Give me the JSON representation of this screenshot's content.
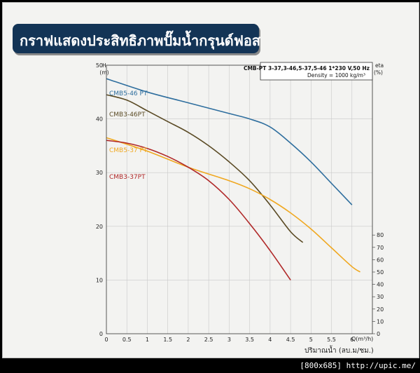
{
  "banner": {
    "title": "กราฟแสดงประสิทธิภาพปั๊มน้ำกรุนด์ฟอส"
  },
  "chart_data": {
    "type": "line",
    "info_line1": "CMB-PT 3-37,3-46,5-37,5-46  1*230 V,50 Hz",
    "info_line2": "Density = 1000 kg/m³",
    "ylabel": "H",
    "ylabel_unit": "(m)",
    "y2label": "eta",
    "y2label_unit": "(%)",
    "xlabel": "ปริมาณน้ำ (ลบ.ม/ชม.)",
    "xlabel_end": "Q(m³/h)",
    "xlim": [
      0,
      6.5
    ],
    "ylim": [
      0,
      50
    ],
    "x_ticks": [
      "0",
      "0.5",
      "1",
      "1.5",
      "2",
      "2.5",
      "3",
      "3.5",
      "4",
      "4.5",
      "5",
      "5.5",
      "6"
    ],
    "y_ticks": [
      "10",
      "20",
      "30",
      "40",
      "50"
    ],
    "y2_ticks": [
      "0",
      "10",
      "20",
      "30",
      "40",
      "50",
      "60",
      "70",
      "80"
    ],
    "grid": true,
    "series": [
      {
        "name": "CMB5-46 PT",
        "color": "#2e6e9e",
        "points": [
          [
            0,
            47.5
          ],
          [
            1,
            45
          ],
          [
            2,
            43
          ],
          [
            3,
            41
          ],
          [
            3.5,
            40
          ],
          [
            4,
            38.5
          ],
          [
            4.5,
            35.5
          ],
          [
            5,
            32
          ],
          [
            5.5,
            28
          ],
          [
            6,
            24
          ]
        ]
      },
      {
        "name": "CMB3-46PT",
        "color": "#5a4a24",
        "points": [
          [
            0,
            44.5
          ],
          [
            0.5,
            43.5
          ],
          [
            1,
            41.5
          ],
          [
            1.5,
            39.5
          ],
          [
            2,
            37.5
          ],
          [
            2.5,
            35
          ],
          [
            3,
            32
          ],
          [
            3.5,
            28.5
          ],
          [
            4,
            24
          ],
          [
            4.5,
            19
          ],
          [
            4.8,
            17
          ]
        ]
      },
      {
        "name": "CMB5-37 PT",
        "color": "#f0a820",
        "points": [
          [
            0,
            36.5
          ],
          [
            1,
            34
          ],
          [
            2,
            31
          ],
          [
            3,
            28.5
          ],
          [
            3.5,
            27
          ],
          [
            4,
            25
          ],
          [
            4.5,
            22.5
          ],
          [
            5,
            19.5
          ],
          [
            5.5,
            16
          ],
          [
            6,
            12.5
          ],
          [
            6.2,
            11.5
          ]
        ]
      },
      {
        "name": "CMB3-37PT",
        "color": "#b02828",
        "points": [
          [
            0,
            36
          ],
          [
            0.5,
            35.5
          ],
          [
            1,
            34.5
          ],
          [
            1.5,
            33
          ],
          [
            2,
            31
          ],
          [
            2.5,
            28.5
          ],
          [
            3,
            25
          ],
          [
            3.5,
            20.5
          ],
          [
            4,
            15.5
          ],
          [
            4.5,
            10
          ]
        ]
      }
    ]
  },
  "footer": {
    "text": "[800x685]  http://upic.me/"
  }
}
